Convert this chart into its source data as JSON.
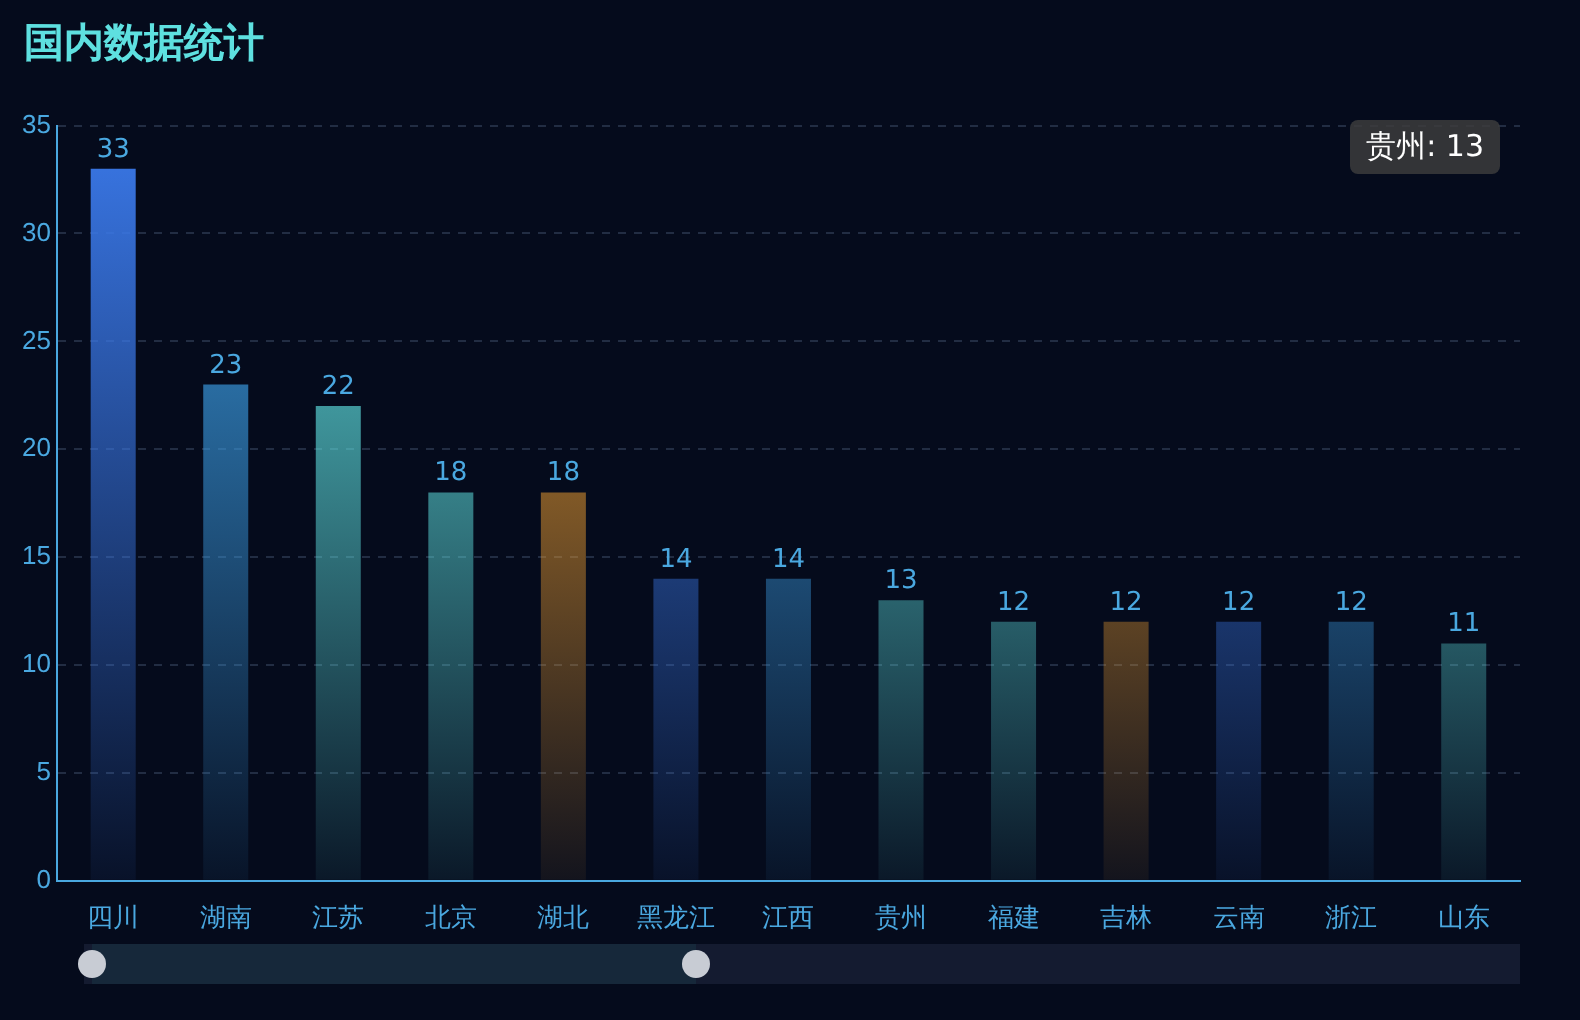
{
  "chart_data": {
    "type": "bar",
    "title": "国内数据统计",
    "categories": [
      "四川",
      "湖南",
      "江苏",
      "北京",
      "湖北",
      "黑龙江",
      "江西",
      "贵州",
      "福建",
      "吉林",
      "云南",
      "浙江",
      "山东"
    ],
    "values": [
      33,
      23,
      22,
      18,
      18,
      14,
      14,
      13,
      12,
      12,
      12,
      12,
      11
    ],
    "colors": [
      "#3a78e8",
      "#3a9ae0",
      "#5ee0e0",
      "#5ee0e0",
      "#e89a30",
      "#3a78e8",
      "#3a9ae0",
      "#5ee0e0",
      "#5ee0e0",
      "#e89a30",
      "#3a78e8",
      "#3a9ae0",
      "#5ee0e0"
    ],
    "ylim": [
      0,
      35
    ],
    "yticks": [
      0,
      5,
      10,
      15,
      20,
      25,
      30,
      35
    ],
    "grid": "y",
    "data_labels": true,
    "annotations": [
      "贵州: 13"
    ]
  }
}
